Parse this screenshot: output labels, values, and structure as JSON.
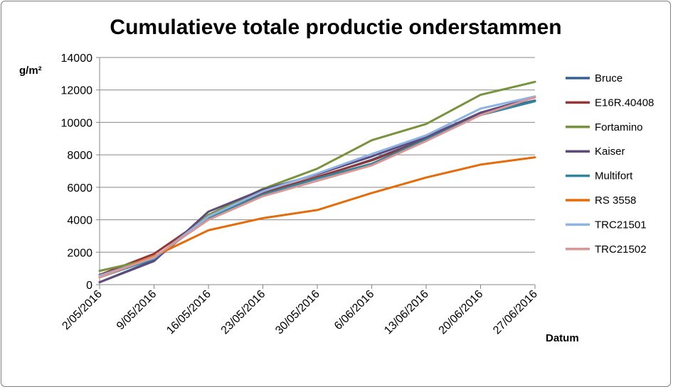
{
  "chart_data": {
    "type": "line",
    "title": "Cumulatieve totale productie onderstammen",
    "ylabel": "g/m²",
    "xlabel": "Datum",
    "ylim": [
      0,
      14000
    ],
    "yticks": [
      0,
      2000,
      4000,
      6000,
      8000,
      10000,
      12000,
      14000
    ],
    "grid": "horizontal",
    "legend_position": "right",
    "categories": [
      "2/05/2016",
      "9/05/2016",
      "16/05/2016",
      "23/05/2016",
      "30/05/2016",
      "6/06/2016",
      "13/06/2016",
      "20/06/2016",
      "27/06/2016"
    ],
    "series": [
      {
        "name": "Bruce",
        "color": "#366092",
        "values": [
          150,
          1500,
          4250,
          5600,
          6600,
          7700,
          9000,
          10600,
          11350
        ]
      },
      {
        "name": "E16R.40408",
        "color": "#953735",
        "values": [
          600,
          1900,
          4200,
          5650,
          6650,
          7650,
          8950,
          10550,
          11550
        ]
      },
      {
        "name": "Fortamino",
        "color": "#77933c",
        "values": [
          850,
          1600,
          4300,
          5900,
          7150,
          8900,
          9900,
          11700,
          12500
        ]
      },
      {
        "name": "Kaiser",
        "color": "#604a7b",
        "values": [
          150,
          1450,
          4500,
          5850,
          6800,
          7900,
          9100,
          10600,
          11550
        ]
      },
      {
        "name": "Multifort",
        "color": "#31859c",
        "values": [
          450,
          1600,
          4100,
          5550,
          6550,
          7450,
          8950,
          10450,
          11300
        ]
      },
      {
        "name": "RS 3558",
        "color": "#e46c0a",
        "values": [
          450,
          1750,
          3350,
          4100,
          4600,
          5650,
          6600,
          7400,
          7850
        ]
      },
      {
        "name": "TRC21501",
        "color": "#8eb4e3",
        "values": [
          550,
          1650,
          4200,
          5750,
          6850,
          8050,
          9200,
          10850,
          11600
        ]
      },
      {
        "name": "TRC21502",
        "color": "#d99694",
        "values": [
          450,
          1700,
          4000,
          5450,
          6400,
          7350,
          8850,
          10450,
          11550
        ]
      }
    ]
  }
}
